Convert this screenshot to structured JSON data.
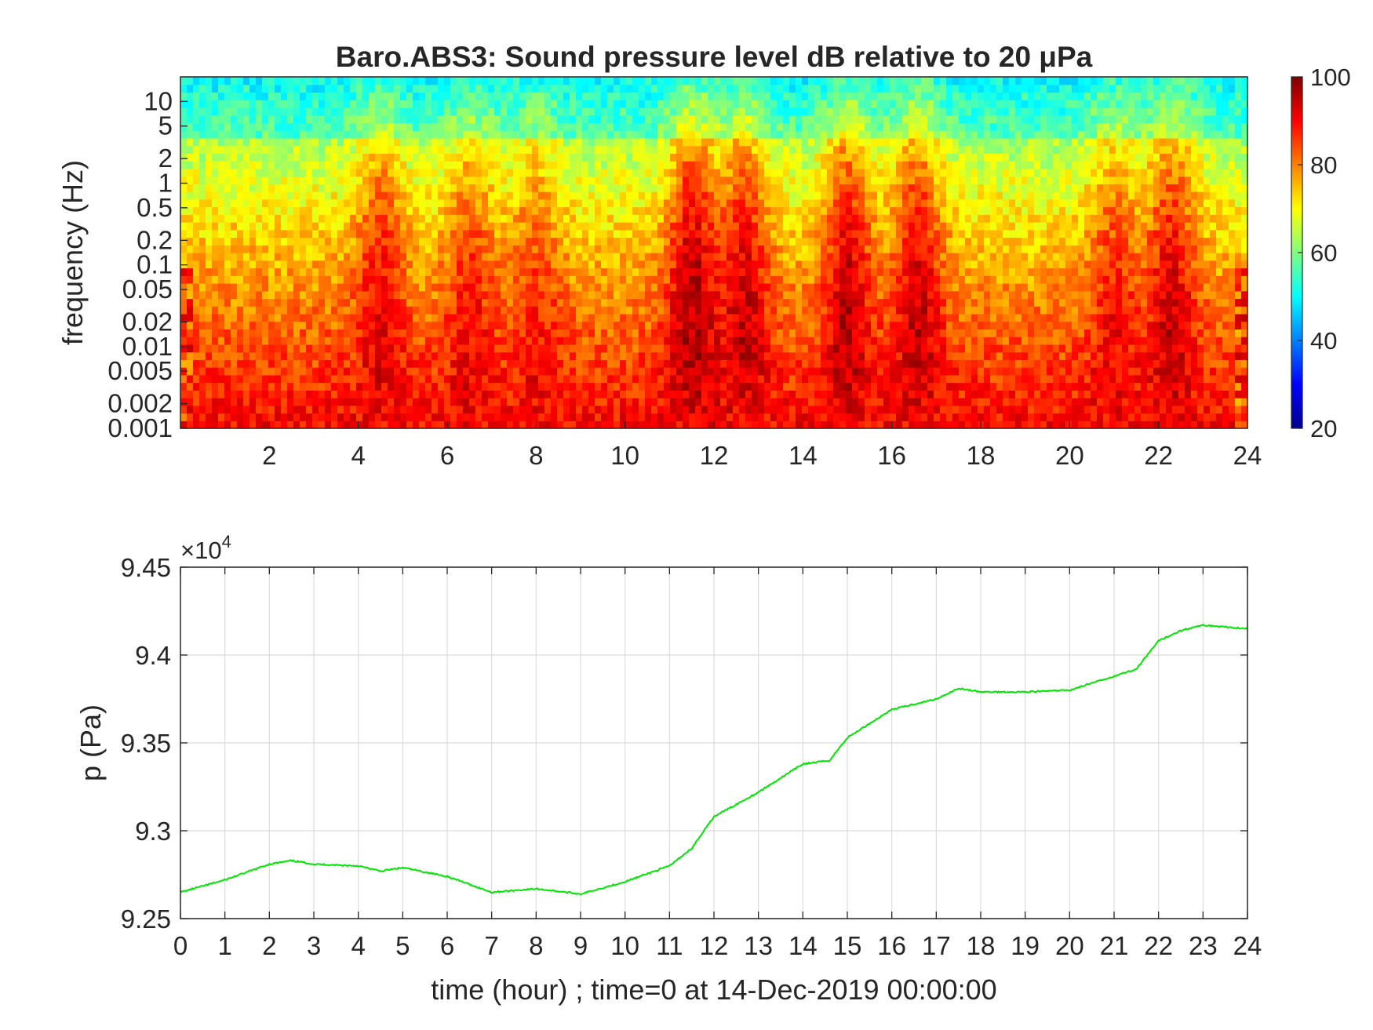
{
  "chart_data": [
    {
      "type": "heatmap",
      "title": "Baro.ABS3: Sound pressure level dB relative to 20 μPa",
      "xlabel": "",
      "ylabel": "frequency (Hz)",
      "xlim": [
        0,
        24
      ],
      "x_ticks": [
        "2",
        "4",
        "6",
        "8",
        "10",
        "12",
        "14",
        "16",
        "18",
        "20",
        "22",
        "24"
      ],
      "y_scale": "log",
      "ylim": [
        0.001,
        20
      ],
      "y_ticks": [
        "0.001",
        "0.002",
        "0.005",
        "0.01",
        "0.02",
        "0.05",
        "0.1",
        "0.2",
        "0.5",
        "1",
        "2",
        "5",
        "10"
      ],
      "colorbar": {
        "colormap": "jet",
        "range": [
          20,
          100
        ],
        "ticks": [
          "20",
          "40",
          "60",
          "80",
          "100"
        ]
      },
      "activity_events_hours": [
        {
          "center": 4.5,
          "intensity": 0.65
        },
        {
          "center": 6.5,
          "intensity": 0.55
        },
        {
          "center": 8.0,
          "intensity": 0.45
        },
        {
          "center": 11.5,
          "intensity": 1.0
        },
        {
          "center": 12.7,
          "intensity": 0.85
        },
        {
          "center": 15.0,
          "intensity": 0.9
        },
        {
          "center": 16.6,
          "intensity": 0.85
        },
        {
          "center": 21.0,
          "intensity": 0.55
        },
        {
          "center": 22.3,
          "intensity": 0.8
        }
      ]
    },
    {
      "type": "line",
      "title": "",
      "xlabel": "time (hour) ; time=0 at 14-Dec-2019 00:00:00",
      "ylabel": "p (Pa)",
      "exponent_label": "×10",
      "exponent_power": "4",
      "xlim": [
        0,
        24
      ],
      "ylim": [
        92500,
        94500
      ],
      "x_ticks": [
        "0",
        "1",
        "2",
        "3",
        "4",
        "5",
        "6",
        "7",
        "8",
        "9",
        "10",
        "11",
        "12",
        "13",
        "14",
        "15",
        "16",
        "17",
        "18",
        "19",
        "20",
        "21",
        "22",
        "23",
        "24"
      ],
      "y_ticks": [
        "9.25",
        "9.3",
        "9.35",
        "9.4",
        "9.45"
      ],
      "grid": true,
      "line_color": "#00e600",
      "x": [
        0,
        1,
        2,
        2.5,
        3,
        4,
        4.5,
        5,
        6,
        7,
        8,
        9,
        10,
        11,
        11.5,
        12,
        13,
        14,
        14.6,
        15,
        16,
        17,
        17.5,
        18,
        19,
        20,
        21,
        21.5,
        22,
        22.5,
        23,
        24
      ],
      "y": [
        92650,
        92720,
        92810,
        92830,
        92810,
        92800,
        92770,
        92790,
        92740,
        92650,
        92670,
        92640,
        92710,
        92800,
        92900,
        93080,
        93220,
        93380,
        93400,
        93530,
        93690,
        93750,
        93810,
        93790,
        93790,
        93800,
        93880,
        93920,
        94080,
        94140,
        94170,
        94150
      ]
    }
  ]
}
